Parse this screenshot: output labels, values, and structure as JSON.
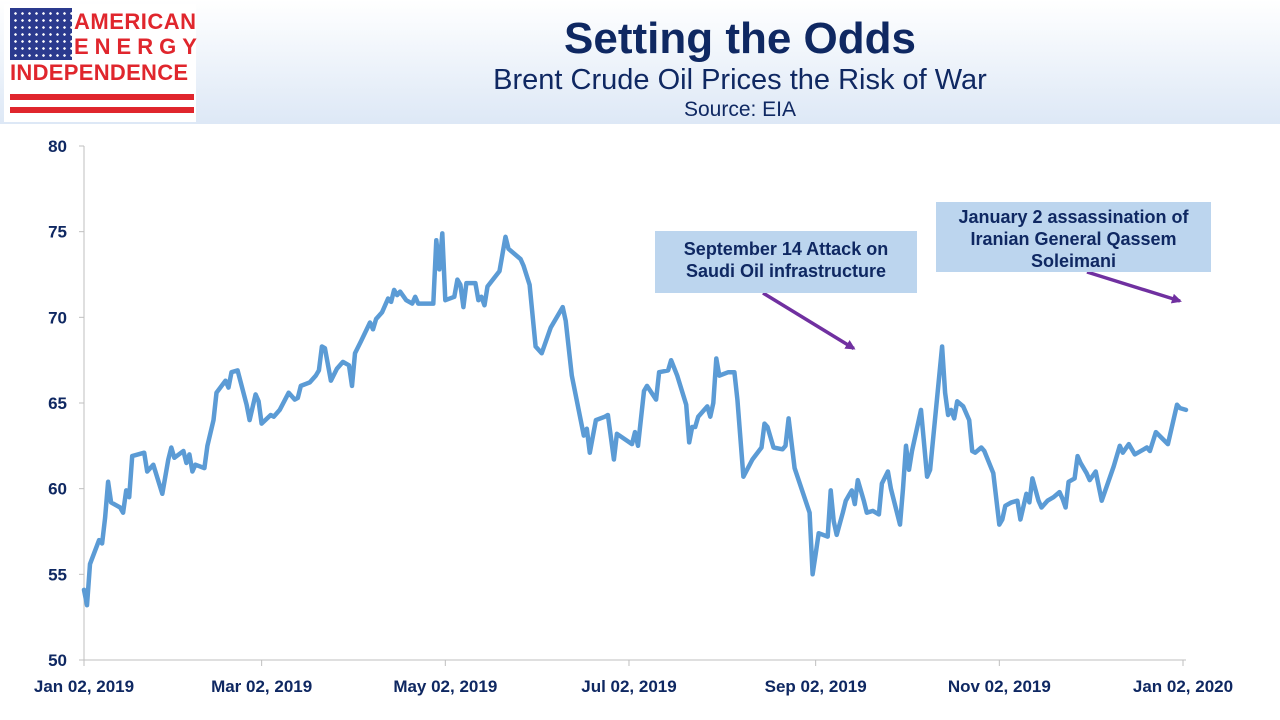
{
  "header": {
    "logo": {
      "line1": "AMERICAN",
      "line2": "ENERGY",
      "line3": "INDEPENDENCE"
    },
    "title": "Setting the Odds",
    "subtitle": "Brent Crude Oil Prices the Risk of War",
    "source": "Source: EIA"
  },
  "colors": {
    "line": "#5b9bd5",
    "title": "#0f2862",
    "arrow": "#7030a0",
    "annotation_bg": "#bcd5ee",
    "logo_red": "#e0262d"
  },
  "annotations": [
    {
      "text": "September 14 Attack on\nSaudi Oil  infrastructure",
      "points_to": "2019-09-16"
    },
    {
      "text": "January 2 assassination of\nIranian General Qassem\nSoleimani",
      "points_to": "2020-01-03"
    }
  ],
  "chart_data": {
    "type": "line",
    "title": "Setting the Odds",
    "subtitle": "Brent Crude Oil Prices the Risk of War",
    "xlabel": "",
    "ylabel": "",
    "ylim": [
      50,
      80
    ],
    "yticks": [
      "50",
      "55",
      "60",
      "65",
      "70",
      "75",
      "80"
    ],
    "xticks": [
      "Jan 02, 2019",
      "Mar 02, 2019",
      "May 02, 2019",
      "Jul 02, 2019",
      "Sep 02, 2019",
      "Nov 02, 2019",
      "Jan 02, 2020"
    ],
    "xlim": [
      "2019-01-02",
      "2020-01-03"
    ],
    "grid": false,
    "legend": "none",
    "series": [
      {
        "points": [
          [
            "2019-01-02",
            54.1
          ],
          [
            "2019-01-03",
            53.2
          ],
          [
            "2019-01-04",
            55.6
          ],
          [
            "2019-01-07",
            57.0
          ],
          [
            "2019-01-08",
            56.8
          ],
          [
            "2019-01-09",
            58.3
          ],
          [
            "2019-01-10",
            60.4
          ],
          [
            "2019-01-11",
            59.2
          ],
          [
            "2019-01-14",
            58.9
          ],
          [
            "2019-01-15",
            58.6
          ],
          [
            "2019-01-16",
            59.9
          ],
          [
            "2019-01-17",
            59.5
          ],
          [
            "2019-01-18",
            61.9
          ],
          [
            "2019-01-22",
            62.1
          ],
          [
            "2019-01-23",
            61.0
          ],
          [
            "2019-01-25",
            61.4
          ],
          [
            "2019-01-28",
            59.7
          ],
          [
            "2019-01-30",
            61.7
          ],
          [
            "2019-01-31",
            62.4
          ],
          [
            "2019-02-01",
            61.8
          ],
          [
            "2019-02-04",
            62.2
          ],
          [
            "2019-02-05",
            61.5
          ],
          [
            "2019-02-06",
            62.0
          ],
          [
            "2019-02-07",
            61.0
          ],
          [
            "2019-02-08",
            61.4
          ],
          [
            "2019-02-11",
            61.2
          ],
          [
            "2019-02-12",
            62.5
          ],
          [
            "2019-02-14",
            64.0
          ],
          [
            "2019-02-15",
            65.6
          ],
          [
            "2019-02-18",
            66.3
          ],
          [
            "2019-02-19",
            65.9
          ],
          [
            "2019-02-20",
            66.8
          ],
          [
            "2019-02-22",
            66.9
          ],
          [
            "2019-02-25",
            64.9
          ],
          [
            "2019-02-26",
            64.0
          ],
          [
            "2019-02-28",
            65.5
          ],
          [
            "2019-03-01",
            65.1
          ],
          [
            "2019-03-02",
            63.8
          ],
          [
            "2019-03-05",
            64.3
          ],
          [
            "2019-03-06",
            64.2
          ],
          [
            "2019-03-08",
            64.6
          ],
          [
            "2019-03-11",
            65.6
          ],
          [
            "2019-03-13",
            65.2
          ],
          [
            "2019-03-14",
            65.3
          ],
          [
            "2019-03-15",
            66.0
          ],
          [
            "2019-03-18",
            66.2
          ],
          [
            "2019-03-20",
            66.6
          ],
          [
            "2019-03-21",
            66.9
          ],
          [
            "2019-03-22",
            68.3
          ],
          [
            "2019-03-23",
            68.2
          ],
          [
            "2019-03-25",
            66.3
          ],
          [
            "2019-03-27",
            67.0
          ],
          [
            "2019-03-29",
            67.4
          ],
          [
            "2019-03-31",
            67.2
          ],
          [
            "2019-04-01",
            66.0
          ],
          [
            "2019-04-02",
            67.9
          ],
          [
            "2019-04-04",
            68.6
          ],
          [
            "2019-04-07",
            69.7
          ],
          [
            "2019-04-08",
            69.3
          ],
          [
            "2019-04-09",
            69.9
          ],
          [
            "2019-04-11",
            70.3
          ],
          [
            "2019-04-13",
            71.1
          ],
          [
            "2019-04-14",
            70.9
          ],
          [
            "2019-04-15",
            71.6
          ],
          [
            "2019-04-16",
            71.3
          ],
          [
            "2019-04-17",
            71.5
          ],
          [
            "2019-04-19",
            71.0
          ],
          [
            "2019-04-21",
            70.8
          ],
          [
            "2019-04-22",
            71.2
          ],
          [
            "2019-04-23",
            70.8
          ],
          [
            "2019-04-28",
            70.8
          ],
          [
            "2019-04-29",
            74.5
          ],
          [
            "2019-04-30",
            72.8
          ],
          [
            "2019-05-01",
            74.9
          ],
          [
            "2019-05-02",
            71.0
          ],
          [
            "2019-05-05",
            71.2
          ],
          [
            "2019-05-06",
            72.2
          ],
          [
            "2019-05-07",
            71.9
          ],
          [
            "2019-05-08",
            70.6
          ],
          [
            "2019-05-09",
            72.0
          ],
          [
            "2019-05-12",
            72.0
          ],
          [
            "2019-05-13",
            71.0
          ],
          [
            "2019-05-14",
            71.2
          ],
          [
            "2019-05-15",
            70.7
          ],
          [
            "2019-05-16",
            71.8
          ],
          [
            "2019-05-20",
            72.7
          ],
          [
            "2019-05-22",
            74.7
          ],
          [
            "2019-05-23",
            74.0
          ],
          [
            "2019-05-27",
            73.4
          ],
          [
            "2019-05-28",
            73.0
          ],
          [
            "2019-05-30",
            71.9
          ],
          [
            "2019-06-01",
            68.3
          ],
          [
            "2019-06-03",
            67.9
          ],
          [
            "2019-06-06",
            69.4
          ],
          [
            "2019-06-10",
            70.6
          ],
          [
            "2019-06-11",
            69.8
          ],
          [
            "2019-06-13",
            66.6
          ],
          [
            "2019-06-17",
            63.1
          ],
          [
            "2019-06-18",
            63.5
          ],
          [
            "2019-06-19",
            62.1
          ],
          [
            "2019-06-21",
            64.0
          ],
          [
            "2019-06-24",
            64.2
          ],
          [
            "2019-06-25",
            64.3
          ],
          [
            "2019-06-27",
            61.7
          ],
          [
            "2019-06-28",
            63.2
          ],
          [
            "2019-07-03",
            62.6
          ],
          [
            "2019-07-04",
            63.3
          ],
          [
            "2019-07-05",
            62.5
          ],
          [
            "2019-07-07",
            65.7
          ],
          [
            "2019-07-08",
            66.0
          ],
          [
            "2019-07-11",
            65.2
          ],
          [
            "2019-07-12",
            66.8
          ],
          [
            "2019-07-15",
            66.9
          ],
          [
            "2019-07-16",
            67.5
          ],
          [
            "2019-07-18",
            66.6
          ],
          [
            "2019-07-21",
            64.9
          ],
          [
            "2019-07-22",
            62.7
          ],
          [
            "2019-07-23",
            63.6
          ],
          [
            "2019-07-24",
            63.6
          ],
          [
            "2019-07-25",
            64.2
          ],
          [
            "2019-07-28",
            64.8
          ],
          [
            "2019-07-29",
            64.2
          ],
          [
            "2019-07-30",
            65.0
          ],
          [
            "2019-07-31",
            67.6
          ],
          [
            "2019-08-01",
            66.6
          ],
          [
            "2019-08-04",
            66.8
          ],
          [
            "2019-08-06",
            66.8
          ],
          [
            "2019-08-07",
            65.2
          ],
          [
            "2019-08-09",
            60.7
          ],
          [
            "2019-08-12",
            61.7
          ],
          [
            "2019-08-15",
            62.4
          ],
          [
            "2019-08-16",
            63.8
          ],
          [
            "2019-08-17",
            63.6
          ],
          [
            "2019-08-19",
            62.4
          ],
          [
            "2019-08-22",
            62.3
          ],
          [
            "2019-08-23",
            62.5
          ],
          [
            "2019-08-24",
            64.1
          ],
          [
            "2019-08-26",
            61.2
          ],
          [
            "2019-08-31",
            58.6
          ],
          [
            "2019-09-01",
            55.0
          ],
          [
            "2019-09-02",
            56.2
          ],
          [
            "2019-09-03",
            57.4
          ],
          [
            "2019-09-06",
            57.2
          ],
          [
            "2019-09-07",
            59.9
          ],
          [
            "2019-09-08",
            58.1
          ],
          [
            "2019-09-09",
            57.3
          ],
          [
            "2019-09-11",
            58.6
          ],
          [
            "2019-09-12",
            59.3
          ],
          [
            "2019-09-13",
            59.6
          ],
          [
            "2019-09-14",
            59.9
          ],
          [
            "2019-09-15",
            59.1
          ],
          [
            "2019-09-16",
            60.5
          ],
          [
            "2019-09-18",
            59.3
          ],
          [
            "2019-09-19",
            58.6
          ],
          [
            "2019-09-21",
            58.7
          ],
          [
            "2019-09-23",
            58.5
          ],
          [
            "2019-09-24",
            60.3
          ],
          [
            "2019-09-26",
            61.0
          ],
          [
            "2019-09-27",
            60.0
          ],
          [
            "2019-09-30",
            57.9
          ],
          [
            "2019-10-01",
            60.0
          ],
          [
            "2019-10-02",
            62.5
          ],
          [
            "2019-10-03",
            61.1
          ],
          [
            "2019-10-04",
            62.2
          ],
          [
            "2019-10-07",
            64.6
          ],
          [
            "2019-10-09",
            60.7
          ],
          [
            "2019-10-10",
            61.1
          ],
          [
            "2019-10-14",
            68.3
          ],
          [
            "2019-10-15",
            65.6
          ],
          [
            "2019-10-16",
            64.3
          ],
          [
            "2019-10-17",
            64.6
          ],
          [
            "2019-10-18",
            64.1
          ],
          [
            "2019-10-19",
            65.1
          ],
          [
            "2019-10-21",
            64.8
          ],
          [
            "2019-10-23",
            64.0
          ],
          [
            "2019-10-24",
            62.2
          ],
          [
            "2019-10-25",
            62.1
          ],
          [
            "2019-10-27",
            62.4
          ],
          [
            "2019-10-28",
            62.2
          ],
          [
            "2019-10-31",
            60.9
          ],
          [
            "2019-11-02",
            57.9
          ],
          [
            "2019-11-03",
            58.2
          ],
          [
            "2019-11-04",
            59.0
          ],
          [
            "2019-11-06",
            59.2
          ],
          [
            "2019-11-08",
            59.3
          ],
          [
            "2019-11-09",
            58.2
          ],
          [
            "2019-11-11",
            59.7
          ],
          [
            "2019-11-12",
            59.2
          ],
          [
            "2019-11-13",
            60.6
          ],
          [
            "2019-11-15",
            59.3
          ],
          [
            "2019-11-16",
            58.9
          ],
          [
            "2019-11-18",
            59.3
          ],
          [
            "2019-11-20",
            59.5
          ],
          [
            "2019-11-22",
            59.8
          ],
          [
            "2019-11-23",
            59.4
          ],
          [
            "2019-11-24",
            58.9
          ],
          [
            "2019-11-25",
            60.4
          ],
          [
            "2019-11-27",
            60.6
          ],
          [
            "2019-11-28",
            61.9
          ],
          [
            "2019-11-29",
            61.5
          ],
          [
            "2019-12-01",
            60.9
          ],
          [
            "2019-12-02",
            60.5
          ],
          [
            "2019-12-04",
            61.0
          ],
          [
            "2019-12-06",
            59.3
          ],
          [
            "2019-12-10",
            61.3
          ],
          [
            "2019-12-12",
            62.5
          ],
          [
            "2019-12-13",
            62.1
          ],
          [
            "2019-12-15",
            62.6
          ],
          [
            "2019-12-17",
            62.0
          ],
          [
            "2019-12-20",
            62.3
          ],
          [
            "2019-12-21",
            62.4
          ],
          [
            "2019-12-22",
            62.2
          ],
          [
            "2019-12-24",
            63.3
          ],
          [
            "2019-12-28",
            62.6
          ],
          [
            "2019-12-31",
            64.9
          ],
          [
            "2020-01-01",
            64.7
          ],
          [
            "2020-01-03",
            64.6
          ]
        ]
      }
    ]
  }
}
